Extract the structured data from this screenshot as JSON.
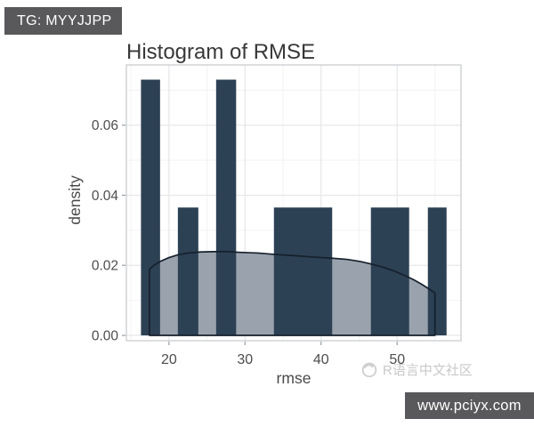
{
  "top_banner": {
    "label": "TG: MYYJJPP",
    "bg": "#59585a",
    "fg": "#ffffff"
  },
  "bottom_banner": {
    "label": "www.pciyx.com",
    "bg": "#59585a",
    "fg": "#ffffff"
  },
  "watermark": {
    "label": "R语言中文社区",
    "icon": "swirl-logo-icon",
    "color": "#c9c9c9"
  },
  "chart_data": {
    "type": "histogram",
    "overlay": "density-area",
    "title": "Histogram of RMSE",
    "xlabel": "rmse",
    "ylabel": "density",
    "xlim": [
      14.4,
      58.4
    ],
    "ylim": [
      0,
      0.0772
    ],
    "x_ticks": [
      20,
      30,
      40,
      50
    ],
    "x_tick_labels": [
      "20",
      "30",
      "40",
      "50"
    ],
    "x_minor_ticks": [
      15,
      25,
      35,
      45,
      55
    ],
    "y_ticks": [
      0,
      0.02,
      0.04,
      0.06
    ],
    "y_tick_labels": [
      "0.00",
      "0.02",
      "0.04",
      "0.06"
    ],
    "y_minor_ticks": [
      0.01,
      0.03,
      0.05,
      0.07
    ],
    "grid": "major+minor",
    "legend": "none",
    "bars": [
      {
        "x0": 16.32,
        "x1": 18.83,
        "density": 0.073
      },
      {
        "x0": 21.17,
        "x1": 23.86,
        "density": 0.0365
      },
      {
        "x0": 26.2,
        "x1": 28.83,
        "density": 0.073
      },
      {
        "x0": 33.8,
        "x1": 41.46,
        "density": 0.0365
      },
      {
        "x0": 46.55,
        "x1": 51.58,
        "density": 0.0365
      },
      {
        "x0": 54.04,
        "x1": 56.5,
        "density": 0.0365
      }
    ],
    "density_curve": {
      "x": [
        17.43,
        17.89,
        18.83,
        20.0,
        21.17,
        22.57,
        24.09,
        25.85,
        27.6,
        29.36,
        31.7,
        34.04,
        36.37,
        38.71,
        41.05,
        43.39,
        45.15,
        46.55,
        48.07,
        49.59,
        50.99,
        52.16,
        53.22,
        54.16,
        54.97
      ],
      "y": [
        0.0188,
        0.0198,
        0.0211,
        0.0222,
        0.023,
        0.0235,
        0.0238,
        0.0239,
        0.0239,
        0.0237,
        0.0235,
        0.0231,
        0.0228,
        0.0224,
        0.0221,
        0.0217,
        0.0211,
        0.0204,
        0.0195,
        0.0184,
        0.0171,
        0.0159,
        0.0146,
        0.0133,
        0.0121
      ]
    },
    "colors": {
      "bar": "#2d4154",
      "density_fill": "#9aa2ad",
      "density_stroke": "#15202d",
      "grid_major": "#e7e8ea",
      "grid_minor": "#f3f3f5",
      "panel_border": "#c4c8cc",
      "panel_bg": "#ffffff",
      "tick_mark": "#989da2",
      "tick_text": "#4d4d4d",
      "axis_title_text": "#4a4a4a",
      "title_text": "#383838"
    }
  }
}
